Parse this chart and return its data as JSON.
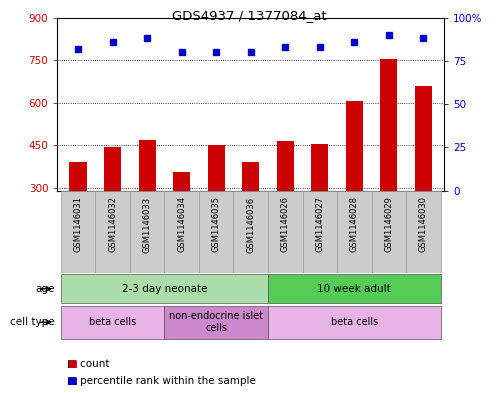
{
  "title": "GDS4937 / 1377084_at",
  "samples": [
    "GSM1146031",
    "GSM1146032",
    "GSM1146033",
    "GSM1146034",
    "GSM1146035",
    "GSM1146036",
    "GSM1146026",
    "GSM1146027",
    "GSM1146028",
    "GSM1146029",
    "GSM1146030"
  ],
  "counts": [
    390,
    445,
    470,
    355,
    450,
    390,
    465,
    455,
    605,
    755,
    660
  ],
  "percentiles": [
    82,
    86,
    88,
    80,
    80,
    80,
    83,
    83,
    86,
    90,
    88
  ],
  "ylim_left": [
    290,
    900
  ],
  "ylim_right": [
    0,
    100
  ],
  "yticks_left": [
    300,
    450,
    600,
    750,
    900
  ],
  "yticks_right": [
    0,
    25,
    50,
    75,
    100
  ],
  "bar_color": "#cc0000",
  "dot_color": "#0000cc",
  "age_groups": [
    {
      "label": "2-3 day neonate",
      "start": 0,
      "end": 6,
      "color": "#aaddaa"
    },
    {
      "label": "10 week adult",
      "start": 6,
      "end": 11,
      "color": "#55cc55"
    }
  ],
  "cell_type_groups": [
    {
      "label": "beta cells",
      "start": 0,
      "end": 3,
      "color": "#e8b4e8"
    },
    {
      "label": "non-endocrine islet\ncells",
      "start": 3,
      "end": 6,
      "color": "#cc88cc"
    },
    {
      "label": "beta cells",
      "start": 6,
      "end": 11,
      "color": "#e8b4e8"
    }
  ],
  "legend_count_color": "#cc0000",
  "legend_pct_color": "#0000cc",
  "sample_bg": "#cccccc",
  "fig_width": 4.99,
  "fig_height": 3.93,
  "dpi": 100
}
